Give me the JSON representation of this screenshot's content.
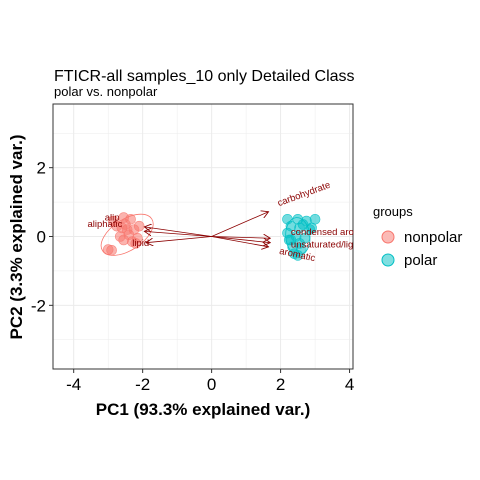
{
  "chart_data": {
    "type": "scatter",
    "title": "FTICR-all samples_10 only Detailed Class",
    "subtitle": "polar vs. nonpolar",
    "xlabel": "PC1 (93.3% explained var.)",
    "ylabel": "PC2 (3.3% explained var.)",
    "xlim": [
      -4.6,
      4.1
    ],
    "ylim": [
      -3.85,
      3.85
    ],
    "xticks": [
      -4,
      -2,
      0,
      2,
      4
    ],
    "yticks": [
      -2,
      0,
      2
    ],
    "grid": true,
    "legend": {
      "title": "groups",
      "position": "right",
      "entries": [
        "nonpolar",
        "polar"
      ]
    },
    "series": [
      {
        "name": "nonpolar",
        "color": "#F8766D",
        "points": [
          [
            -2.85,
            0.45
          ],
          [
            -2.55,
            0.55
          ],
          [
            -2.35,
            0.5
          ],
          [
            -2.1,
            0.3
          ],
          [
            -2.45,
            0.2
          ],
          [
            -2.25,
            0.2
          ],
          [
            -2.6,
            0.25
          ],
          [
            -2.75,
            0.3
          ],
          [
            -2.4,
            0.05
          ],
          [
            -2.55,
            -0.1
          ],
          [
            -2.3,
            -0.15
          ],
          [
            -2.65,
            0.0
          ],
          [
            -2.15,
            -0.05
          ],
          [
            -2.9,
            -0.4
          ],
          [
            -3.0,
            -0.38
          ],
          [
            -2.2,
            -0.2
          ],
          [
            -2.5,
            0.35
          ]
        ],
        "ellipse": {
          "cx": -2.45,
          "cy": 0.05,
          "rx": 0.85,
          "ry": 0.45,
          "angle_deg": 33
        }
      },
      {
        "name": "polar",
        "color": "#00BFC4",
        "points": [
          [
            2.2,
            0.5
          ],
          [
            2.5,
            0.5
          ],
          [
            2.75,
            0.45
          ],
          [
            3.0,
            0.5
          ],
          [
            2.3,
            0.3
          ],
          [
            2.55,
            0.25
          ],
          [
            2.85,
            0.2
          ],
          [
            2.2,
            0.1
          ],
          [
            2.45,
            0.0
          ],
          [
            2.7,
            -0.05
          ],
          [
            2.3,
            -0.1
          ],
          [
            2.55,
            -0.2
          ],
          [
            2.35,
            -0.3
          ],
          [
            2.6,
            -0.35
          ],
          [
            2.4,
            -0.5
          ],
          [
            2.5,
            -0.55
          ],
          [
            2.25,
            -0.1
          ],
          [
            2.9,
            0.25
          ],
          [
            2.65,
            0.35
          ]
        ],
        "ellipse": {
          "cx": 2.5,
          "cy": 0.0,
          "rx": 0.35,
          "ry": 0.55,
          "angle_deg": 5
        }
      }
    ],
    "loadings": [
      {
        "label": "aliphatic",
        "x": -1.95,
        "y": 0.28
      },
      {
        "label": "alip...",
        "x": -1.95,
        "y": 0.15
      },
      {
        "label": "lipid",
        "x": -1.9,
        "y": -0.18
      },
      {
        "label": "carbohydrate",
        "x": 1.65,
        "y": 0.72
      },
      {
        "label": "condensed aro...",
        "x": 1.7,
        "y": -0.05
      },
      {
        "label": "unsaturated/lig...",
        "x": 1.7,
        "y": -0.18
      },
      {
        "label": "aromatic",
        "x": 1.65,
        "y": -0.3
      }
    ],
    "loading_labels": [
      {
        "text": "alip",
        "x": -3.1,
        "y": 0.47,
        "angle": 0
      },
      {
        "text": "aliphatic",
        "x": -3.6,
        "y": 0.27,
        "angle": 0
      },
      {
        "text": "lipid",
        "x": -2.3,
        "y": -0.27,
        "angle": 0
      },
      {
        "text": "carbohydrate",
        "x": 1.95,
        "y": 0.88,
        "angle": -20
      },
      {
        "text": "condensed aro",
        "x": 2.3,
        "y": 0.05,
        "angle": 0
      },
      {
        "text": "unsaturated/lig",
        "x": 2.3,
        "y": -0.32,
        "angle": 0
      },
      {
        "text": "aromatic",
        "x": 1.95,
        "y": -0.5,
        "angle": 12
      }
    ]
  }
}
